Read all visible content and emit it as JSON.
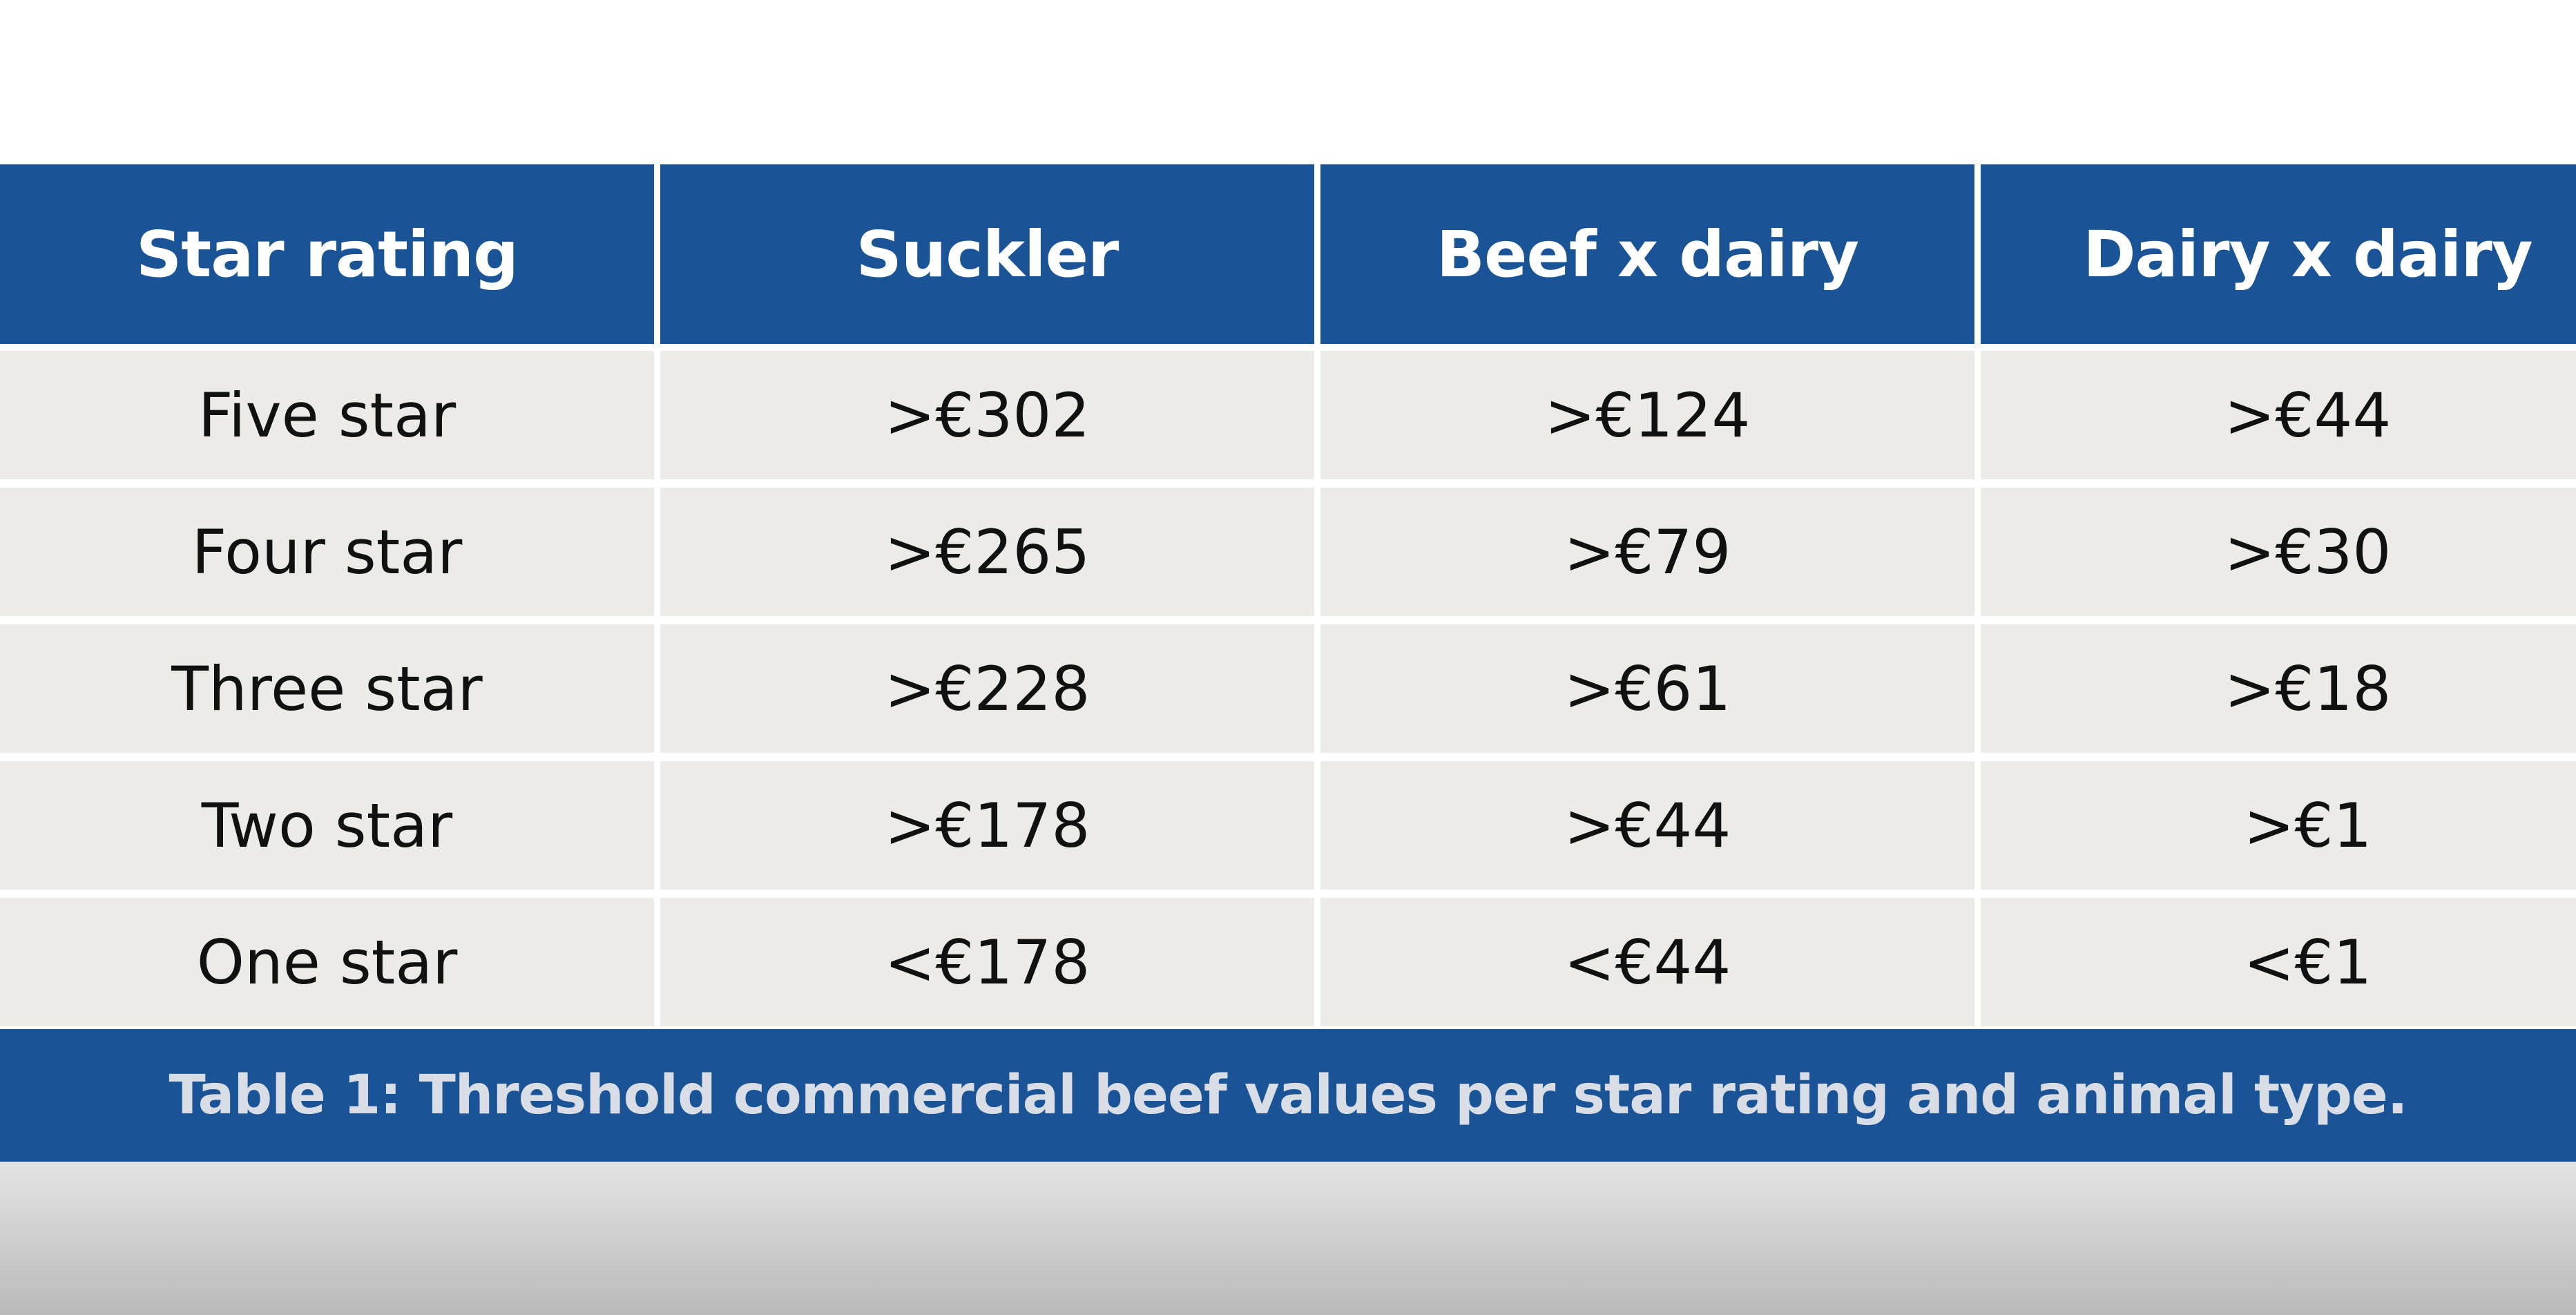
{
  "table": {
    "headers": [
      "Star rating",
      "Suckler",
      "Beef x dairy",
      "Dairy x dairy"
    ],
    "rows": [
      [
        "Five star",
        ">€302",
        ">€124",
        ">€44"
      ],
      [
        "Four star",
        ">€265",
        ">€79",
        ">€30"
      ],
      [
        "Three star",
        ">€228",
        ">€61",
        ">€18"
      ],
      [
        "Two star",
        ">€178",
        ">€44",
        ">€1"
      ],
      [
        "One star",
        "<€178",
        "<€44",
        "<€1"
      ]
    ]
  },
  "caption": "Table 1: Threshold commercial beef values per star rating and animal type.",
  "colors": {
    "header_bg": "#1a5496",
    "cell_bg": "#ecebe8",
    "caption_text": "#d8dde6"
  }
}
